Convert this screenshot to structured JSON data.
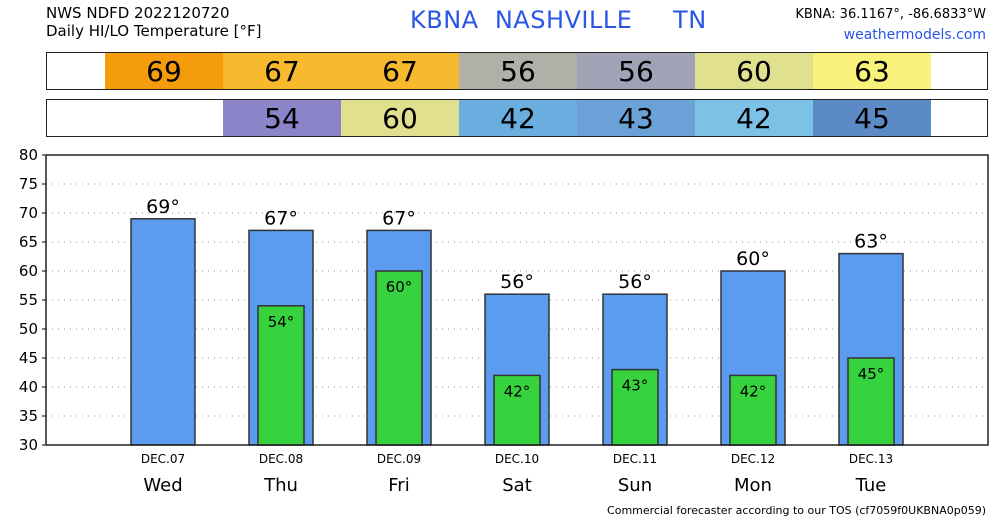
{
  "header": {
    "line1": "NWS NDFD 2022120720",
    "line2": "Daily HI/LO Temperature [°F]",
    "station_title": "KBNA  NASHVILLE     TN",
    "coords": "KBNA: 36.1167°, -86.6833°W",
    "site": "weathermodels.com"
  },
  "hi_strip": [
    {
      "value": "69",
      "color": "#f59c0c"
    },
    {
      "value": "67",
      "color": "#f7b92e"
    },
    {
      "value": "67",
      "color": "#f7b92e"
    },
    {
      "value": "56",
      "color": "#b0b0a8"
    },
    {
      "value": "56",
      "color": "#a2a2b6"
    },
    {
      "value": "60",
      "color": "#e0e08e"
    },
    {
      "value": "63",
      "color": "#f8f27a"
    }
  ],
  "lo_strip": [
    {
      "value": "",
      "color": "#ffffff"
    },
    {
      "value": "54",
      "color": "#8c84c8"
    },
    {
      "value": "60",
      "color": "#e0e08e"
    },
    {
      "value": "42",
      "color": "#6aaee0"
    },
    {
      "value": "43",
      "color": "#6aa2d8"
    },
    {
      "value": "42",
      "color": "#7cc2e6"
    },
    {
      "value": "45",
      "color": "#5c8ac4"
    }
  ],
  "chart_data": {
    "type": "bar",
    "categories": [
      "Wed",
      "Thu",
      "Fri",
      "Sat",
      "Sun",
      "Mon",
      "Tue"
    ],
    "dates": [
      "DEC.07",
      "DEC.08",
      "DEC.09",
      "DEC.10",
      "DEC.11",
      "DEC.12",
      "DEC.13"
    ],
    "series": [
      {
        "values": [
          69,
          67,
          67,
          56,
          56,
          60,
          63
        ],
        "color": "#5b9cf0"
      },
      {
        "values": [
          null,
          54,
          60,
          42,
          43,
          42,
          45
        ],
        "color": "#37d33f"
      }
    ],
    "ylim": [
      30,
      80
    ],
    "yticks": [
      30,
      35,
      40,
      45,
      50,
      55,
      60,
      65,
      70,
      75,
      80
    ],
    "grid": true,
    "title": "",
    "xlabel": "",
    "ylabel": ""
  },
  "footer": "Commercial forecaster according to our TOS (cf7059f0UKBNA0p059)"
}
